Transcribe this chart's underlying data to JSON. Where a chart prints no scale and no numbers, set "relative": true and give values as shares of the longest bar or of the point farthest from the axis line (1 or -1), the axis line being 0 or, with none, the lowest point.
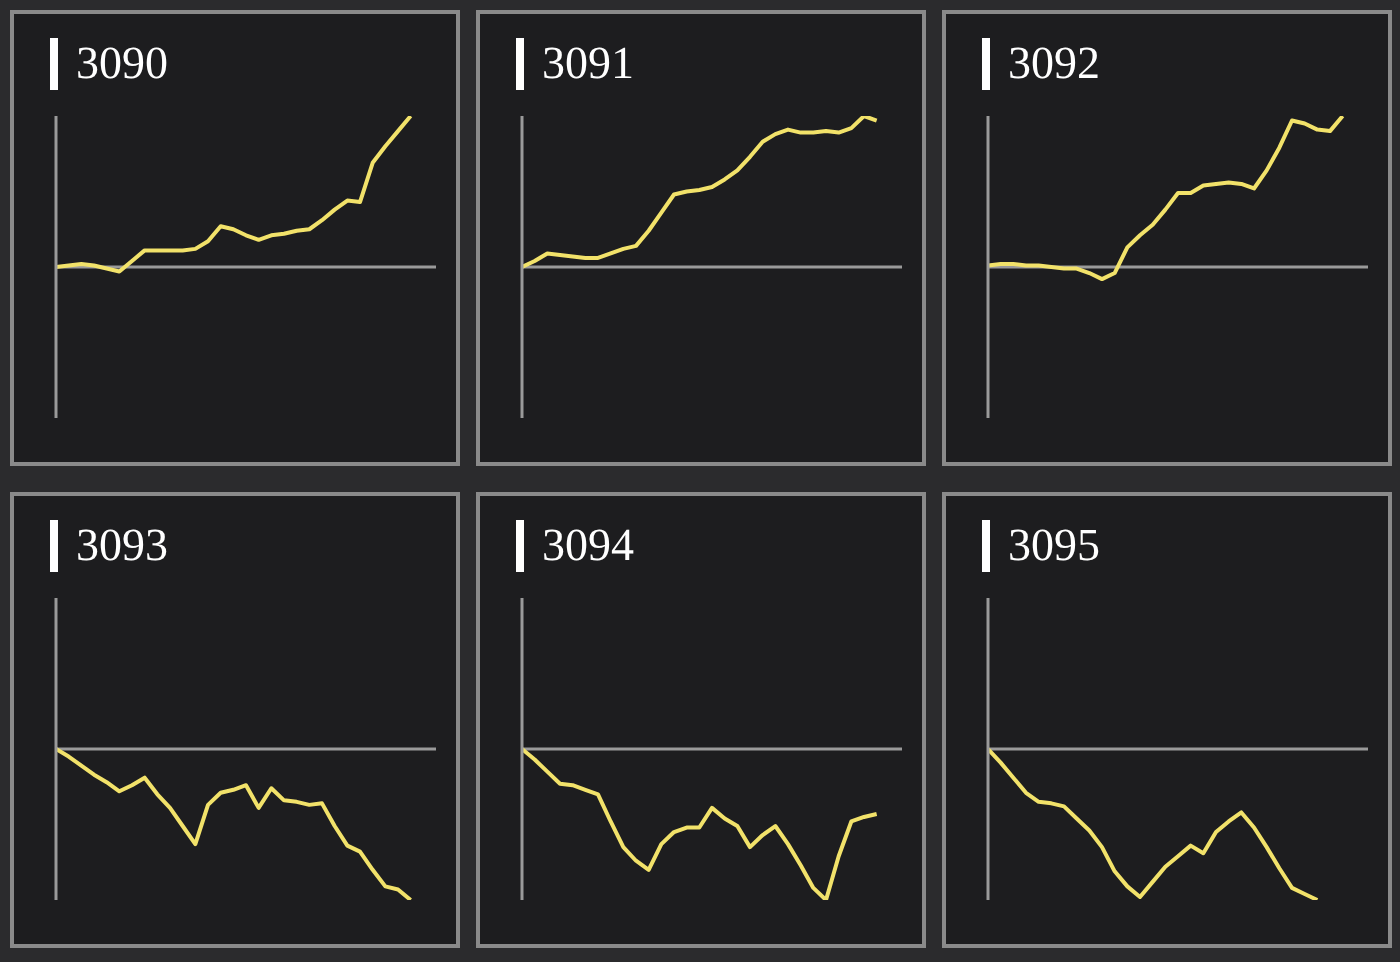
{
  "chart_data": [
    {
      "type": "line",
      "title": "3090",
      "relative": true,
      "categories": [
        null,
        null,
        null,
        null,
        null,
        null,
        null,
        null,
        null,
        null,
        null,
        null,
        null,
        null,
        null,
        null,
        null,
        null,
        null,
        null,
        null,
        null,
        null,
        null,
        null,
        null,
        null,
        null,
        null,
        null,
        null
      ],
      "series": [
        {
          "color": "#f2e26a",
          "values": [
            0,
            0.01,
            0.02,
            0.01,
            -0.01,
            -0.03,
            0.04,
            0.11,
            0.11,
            0.11,
            0.11,
            0.12,
            0.17,
            0.27,
            0.25,
            0.21,
            0.18,
            0.21,
            0.22,
            0.24,
            0.25,
            0.31,
            0.38,
            0.44,
            0.43,
            0.69,
            0.8,
            0.9,
            1,
            null,
            null
          ]
        }
      ]
    },
    {
      "type": "line",
      "title": "3091",
      "relative": true,
      "categories": [
        null,
        null,
        null,
        null,
        null,
        null,
        null,
        null,
        null,
        null,
        null,
        null,
        null,
        null,
        null,
        null,
        null,
        null,
        null,
        null,
        null,
        null,
        null,
        null,
        null,
        null,
        null,
        null,
        null,
        null,
        null
      ],
      "series": [
        {
          "color": "#f2e26a",
          "values": [
            0,
            0.04,
            0.09,
            0.08,
            0.07,
            0.06,
            0.06,
            0.09,
            0.12,
            0.14,
            0.24,
            0.36,
            0.48,
            0.5,
            0.51,
            0.53,
            0.58,
            0.64,
            0.73,
            0.83,
            0.88,
            0.91,
            0.89,
            0.89,
            0.9,
            0.89,
            0.92,
            1,
            0.97,
            null,
            null
          ]
        }
      ]
    },
    {
      "type": "line",
      "title": "3092",
      "relative": true,
      "categories": [
        null,
        null,
        null,
        null,
        null,
        null,
        null,
        null,
        null,
        null,
        null,
        null,
        null,
        null,
        null,
        null,
        null,
        null,
        null,
        null,
        null,
        null,
        null,
        null,
        null,
        null,
        null,
        null,
        null,
        null,
        null
      ],
      "series": [
        {
          "color": "#f2e26a",
          "values": [
            0.01,
            0.02,
            0.02,
            0.01,
            0.01,
            0,
            -0.01,
            -0.01,
            -0.04,
            -0.08,
            -0.04,
            0.13,
            0.21,
            0.28,
            0.38,
            0.49,
            0.49,
            0.54,
            0.55,
            0.56,
            0.55,
            0.52,
            0.64,
            0.79,
            0.97,
            0.95,
            0.91,
            0.9,
            1,
            null,
            null
          ]
        }
      ]
    },
    {
      "type": "line",
      "title": "3093",
      "relative": true,
      "categories": [
        null,
        null,
        null,
        null,
        null,
        null,
        null,
        null,
        null,
        null,
        null,
        null,
        null,
        null,
        null,
        null,
        null,
        null,
        null,
        null,
        null,
        null,
        null,
        null,
        null,
        null,
        null,
        null,
        null,
        null,
        null
      ],
      "series": [
        {
          "color": "#f2e26a",
          "values": [
            0,
            -0.05,
            -0.11,
            -0.17,
            -0.22,
            -0.28,
            -0.24,
            -0.19,
            -0.3,
            -0.39,
            -0.51,
            -0.63,
            -0.37,
            -0.29,
            -0.27,
            -0.24,
            -0.39,
            -0.26,
            -0.34,
            -0.35,
            -0.37,
            -0.36,
            -0.51,
            -0.64,
            -0.68,
            -0.8,
            -0.91,
            -0.93,
            -1,
            null,
            null
          ]
        }
      ]
    },
    {
      "type": "line",
      "title": "3094",
      "relative": true,
      "categories": [
        null,
        null,
        null,
        null,
        null,
        null,
        null,
        null,
        null,
        null,
        null,
        null,
        null,
        null,
        null,
        null,
        null,
        null,
        null,
        null,
        null,
        null,
        null,
        null,
        null,
        null,
        null,
        null,
        null,
        null,
        null
      ],
      "series": [
        {
          "color": "#f2e26a",
          "values": [
            0,
            -0.07,
            -0.15,
            -0.23,
            -0.24,
            -0.27,
            -0.3,
            -0.48,
            -0.65,
            -0.74,
            -0.8,
            -0.63,
            -0.55,
            -0.52,
            -0.52,
            -0.39,
            -0.46,
            -0.51,
            -0.65,
            -0.57,
            -0.51,
            -0.63,
            -0.77,
            -0.92,
            -1,
            -0.71,
            -0.48,
            -0.45,
            -0.43,
            null,
            null
          ]
        }
      ]
    },
    {
      "type": "line",
      "title": "3095",
      "relative": true,
      "categories": [
        null,
        null,
        null,
        null,
        null,
        null,
        null,
        null,
        null,
        null,
        null,
        null,
        null,
        null,
        null,
        null,
        null,
        null,
        null,
        null,
        null,
        null,
        null,
        null,
        null,
        null,
        null,
        null,
        null,
        null,
        null
      ],
      "series": [
        {
          "color": "#f2e26a",
          "values": [
            0,
            -0.09,
            -0.19,
            -0.29,
            -0.35,
            -0.36,
            -0.38,
            -0.46,
            -0.54,
            -0.65,
            -0.81,
            -0.91,
            -0.98,
            -0.88,
            -0.78,
            -0.71,
            -0.64,
            -0.69,
            -0.55,
            -0.48,
            -0.42,
            -0.52,
            -0.65,
            -0.79,
            -0.92,
            -0.96,
            -1,
            null,
            null,
            null,
            null
          ]
        }
      ]
    }
  ]
}
